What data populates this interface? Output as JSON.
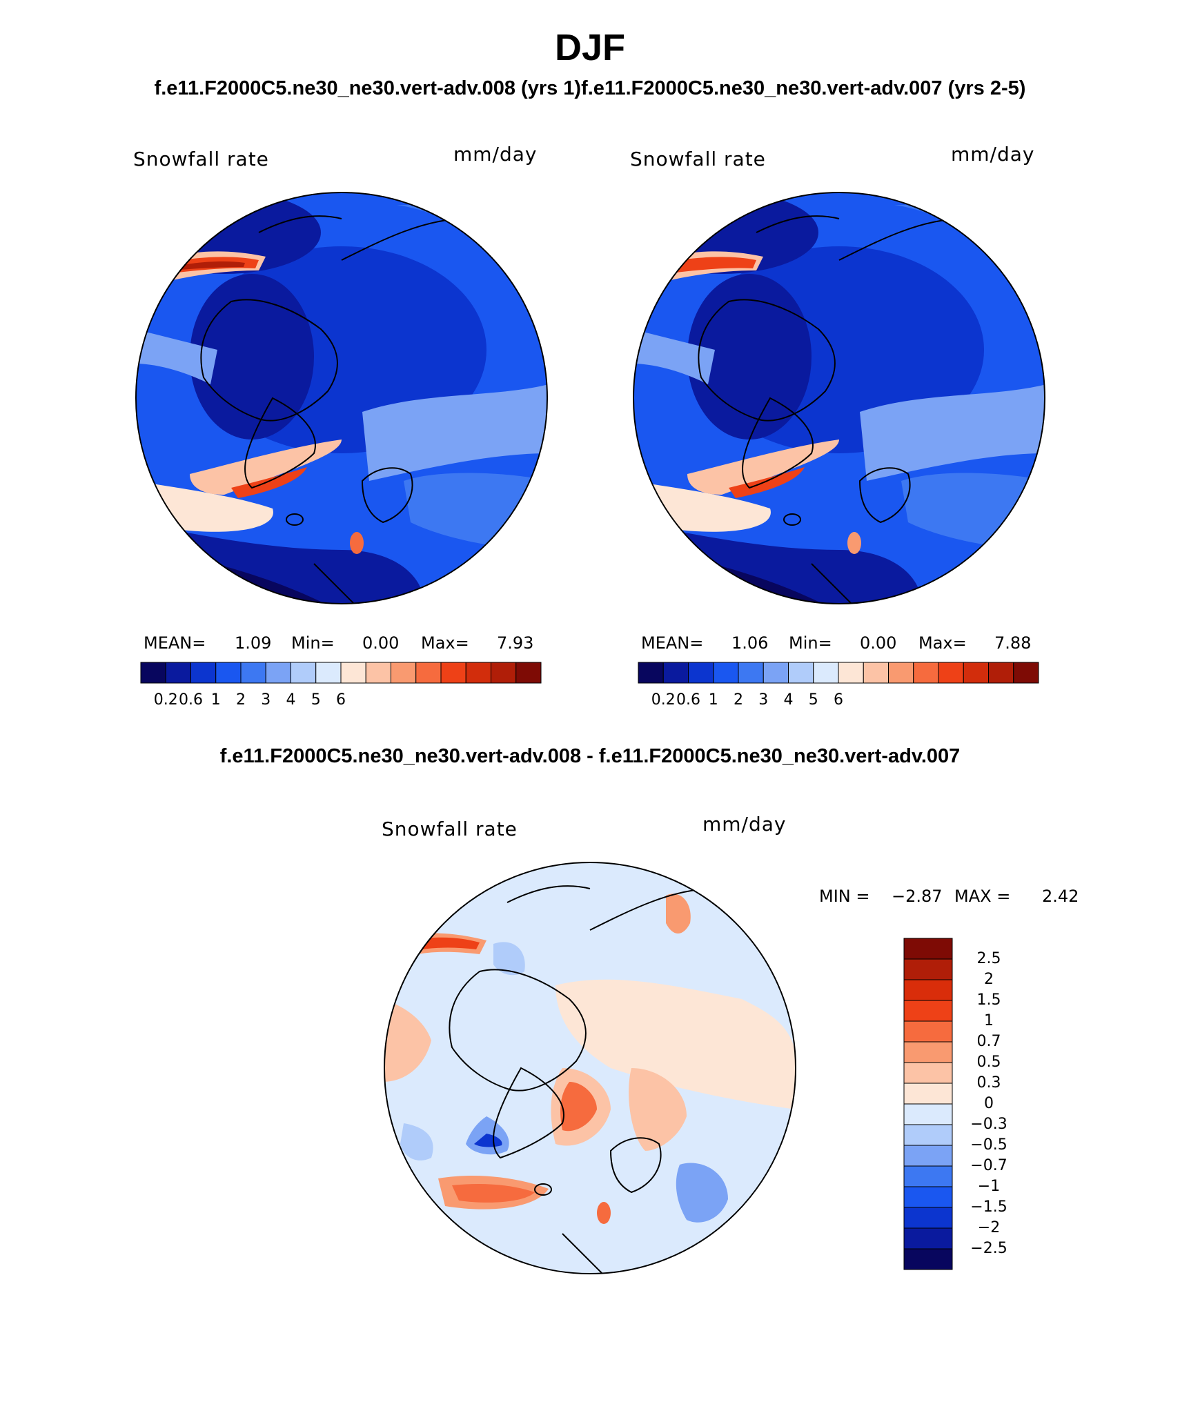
{
  "title": "DJF",
  "subtitle": "f.e11.F2000C5.ne30_ne30.vert-adv.008 (yrs 1)f.e11.F2000C5.ne30_ne30.vert-adv.007 (yrs 2-5)",
  "diff_title": "f.e11.F2000C5.ne30_ne30.vert-adv.008 - f.e11.F2000C5.ne30_ne30.vert-adv.007",
  "chart_data": [
    {
      "type": "heatmap",
      "projection": "north polar stereographic",
      "variable": "Snowfall rate",
      "units": "mm/day",
      "stats": {
        "mean_label": "MEAN=",
        "mean": "1.09",
        "min_label": "Min=",
        "min": "0.00",
        "max_label": "Max=",
        "max": "7.93"
      },
      "colorbar_ticks": [
        "0.2",
        "0.6",
        "1",
        "2",
        "3",
        "4",
        "5",
        "6"
      ],
      "colorbar_colors": [
        "#08065e",
        "#0a1a9e",
        "#0c35cf",
        "#1a57f0",
        "#3d78f2",
        "#7ba3f5",
        "#b0ccfa",
        "#dbeafd",
        "#fde6d6",
        "#fcc3a6",
        "#f99a70",
        "#f66b3e",
        "#ee4117",
        "#d22d0c",
        "#b01e08",
        "#7e0b05"
      ]
    },
    {
      "type": "heatmap",
      "projection": "north polar stereographic",
      "variable": "Snowfall rate",
      "units": "mm/day",
      "stats": {
        "mean_label": "MEAN=",
        "mean": "1.06",
        "min_label": "Min=",
        "min": "0.00",
        "max_label": "Max=",
        "max": "7.88"
      },
      "colorbar_ticks": [
        "0.2",
        "0.6",
        "1",
        "2",
        "3",
        "4",
        "5",
        "6"
      ],
      "colorbar_colors": [
        "#08065e",
        "#0a1a9e",
        "#0c35cf",
        "#1a57f0",
        "#3d78f2",
        "#7ba3f5",
        "#b0ccfa",
        "#dbeafd",
        "#fde6d6",
        "#fcc3a6",
        "#f99a70",
        "#f66b3e",
        "#ee4117",
        "#d22d0c",
        "#b01e08",
        "#7e0b05"
      ]
    },
    {
      "type": "heatmap",
      "projection": "north polar stereographic",
      "variable": "Snowfall rate",
      "units": "mm/day",
      "stats": {
        "min_label": "MIN =",
        "min": "−2.87",
        "max_label": "MAX =",
        "max": "2.42"
      },
      "colorbar_ticks": [
        "2.5",
        "2",
        "1.5",
        "1",
        "0.7",
        "0.5",
        "0.3",
        "0",
        "−0.3",
        "−0.5",
        "−0.7",
        "−1",
        "−1.5",
        "−2",
        "−2.5"
      ],
      "colorbar_colors": [
        "#7e0b05",
        "#b01e08",
        "#d92d0a",
        "#ee4117",
        "#f66b3e",
        "#f99a70",
        "#fcc3a6",
        "#fde6d6",
        "#dbeafd",
        "#b0ccfa",
        "#7ba3f5",
        "#3d78f2",
        "#1a57f0",
        "#0c35cf",
        "#0a1a9e",
        "#08065e"
      ]
    }
  ]
}
